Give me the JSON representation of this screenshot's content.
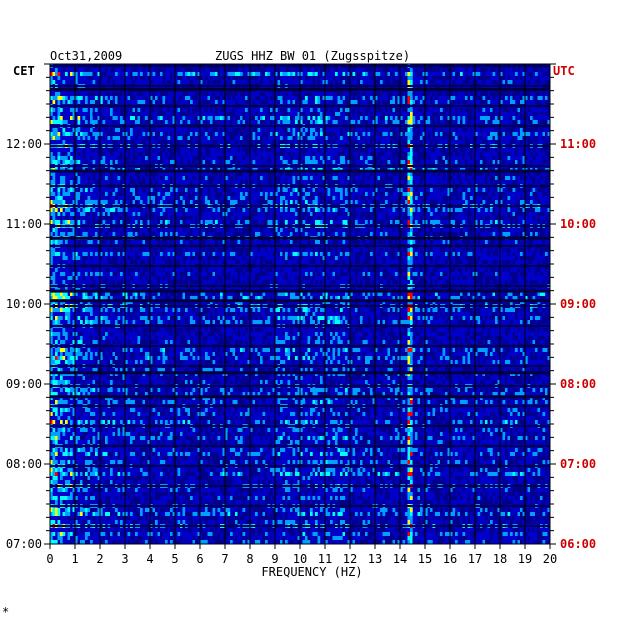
{
  "chart_data": {
    "type": "heatmap",
    "date_label": "Oct31,2009",
    "title": "ZUGS HHZ BW 01 (Zugsspitze)",
    "xlabel": "FREQUENCY (HZ)",
    "left_axis_label": "CET",
    "right_axis_label": "UTC",
    "x_ticks": [
      "0",
      "1",
      "2",
      "3",
      "4",
      "5",
      "6",
      "7",
      "8",
      "9",
      "10",
      "11",
      "12",
      "13",
      "14",
      "15",
      "16",
      "17",
      "18",
      "19",
      "20"
    ],
    "xlim": [
      0,
      20
    ],
    "left_time_ticks": [
      "12:00",
      "11:00",
      "10:00",
      "09:00",
      "08:00",
      "07:00"
    ],
    "right_time_ticks": [
      "11:00",
      "10:00",
      "09:00",
      "08:00",
      "07:00",
      "06:00"
    ],
    "time_range_cet": [
      "07:00",
      "13:00"
    ],
    "grid": true,
    "colormap": [
      "#00008c",
      "#0000ff",
      "#00a0ff",
      "#00ffff",
      "#ffff00",
      "#ff0000"
    ],
    "corner_mark": "*"
  }
}
